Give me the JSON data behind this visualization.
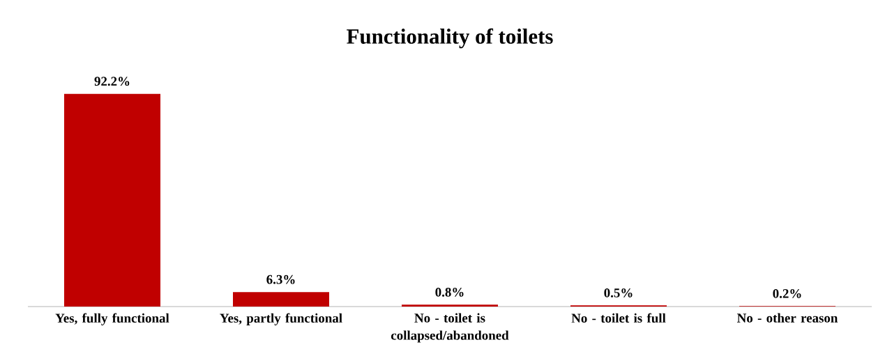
{
  "chart_data": {
    "type": "bar",
    "title": "Functionality of toilets",
    "categories": [
      "Yes, fully functional",
      "Yes, partly functional",
      "No - toilet is collapsed/abandoned",
      "No - toilet is full",
      "No - other reason"
    ],
    "values": [
      92.2,
      6.3,
      0.8,
      0.5,
      0.2
    ],
    "value_labels": [
      "92.2%",
      "6.3%",
      "0.8%",
      "0.5%",
      "0.2%"
    ],
    "color": "#c00000"
  }
}
